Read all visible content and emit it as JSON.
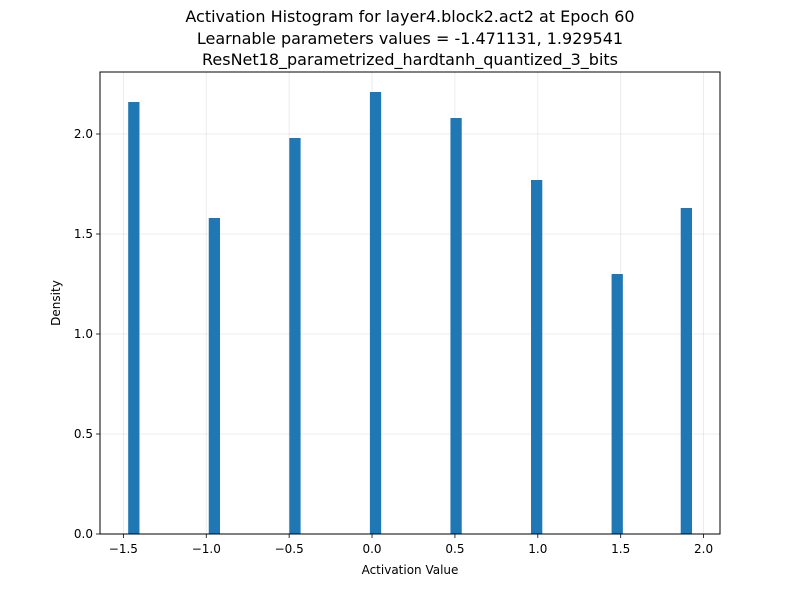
{
  "chart_data": {
    "type": "bar",
    "title_lines": [
      "Activation Histogram for layer4.block2.act2 at Epoch 60",
      "Learnable parameters values = -1.471131, 1.929541",
      "ResNet18_parametrized_hardtanh_quantized_3_bits"
    ],
    "xlabel": "Activation Value",
    "ylabel": "Density",
    "xlim": [
      -1.641,
      2.099
    ],
    "ylim": [
      0,
      2.31
    ],
    "xticks": [
      -1.5,
      -1.0,
      -0.5,
      0.0,
      0.5,
      1.0,
      1.5,
      2.0
    ],
    "xtick_labels": [
      "−1.5",
      "−1.0",
      "−0.5",
      "0.0",
      "0.5",
      "1.0",
      "1.5",
      "2.0"
    ],
    "yticks": [
      0.0,
      0.5,
      1.0,
      1.5,
      2.0
    ],
    "ytick_labels": [
      "0.0",
      "0.5",
      "1.0",
      "1.5",
      "2.0"
    ],
    "grid": true,
    "bar_color": "#1f77b4",
    "bins": [
      {
        "x0": -1.471,
        "x1": -1.403,
        "value": 2.16
      },
      {
        "x0": -0.985,
        "x1": -0.917,
        "value": 1.58
      },
      {
        "x0": -0.499,
        "x1": -0.431,
        "value": 1.98
      },
      {
        "x0": -0.013,
        "x1": 0.055,
        "value": 2.21
      },
      {
        "x0": 0.473,
        "x1": 0.541,
        "value": 2.08
      },
      {
        "x0": 0.959,
        "x1": 1.027,
        "value": 1.77
      },
      {
        "x0": 1.445,
        "x1": 1.513,
        "value": 1.3
      },
      {
        "x0": 1.862,
        "x1": 1.93,
        "value": 1.63
      }
    ]
  }
}
